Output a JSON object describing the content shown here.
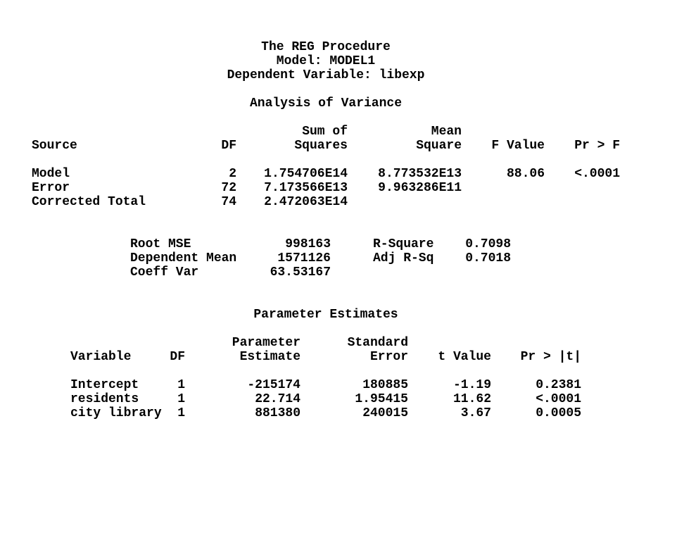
{
  "report": {
    "titles": {
      "procedure": "The REG Procedure",
      "model": "Model: MODEL1",
      "dependent": "Dependent Variable: libexp"
    },
    "anova": {
      "title": "Analysis of Variance",
      "header_top": {
        "sum_of": "Sum of",
        "mean": "Mean"
      },
      "header": {
        "source": "Source",
        "df": "DF",
        "squares": "Squares",
        "square": "Square",
        "f_value": "F Value",
        "pr_f": "Pr > F"
      },
      "rows": [
        {
          "source": "Model",
          "df": "2",
          "sum_of_squares": "1.754706E14",
          "mean_square": "8.773532E13",
          "f_value": "88.06",
          "pr_f": "<.0001"
        },
        {
          "source": "Error",
          "df": "72",
          "sum_of_squares": "7.173566E13",
          "mean_square": "9.963286E11",
          "f_value": "",
          "pr_f": ""
        },
        {
          "source": "Corrected Total",
          "df": "74",
          "sum_of_squares": "2.472063E14",
          "mean_square": "",
          "f_value": "",
          "pr_f": ""
        }
      ]
    },
    "fit_statistics": {
      "rows": [
        {
          "label": "Root MSE",
          "value": "998163",
          "label2": "R-Square",
          "value2": "0.7098"
        },
        {
          "label": "Dependent Mean",
          "value": "1571126",
          "label2": "Adj R-Sq",
          "value2": "0.7018"
        },
        {
          "label": "Coeff Var",
          "value": "63.53167",
          "label2": "",
          "value2": ""
        }
      ]
    },
    "parameter_estimates": {
      "title": "Parameter Estimates",
      "header_top": {
        "parameter": "Parameter",
        "standard": "Standard"
      },
      "header": {
        "variable": "Variable",
        "df": "DF",
        "estimate": "Estimate",
        "error": "Error",
        "t_value": "t Value",
        "pr_t": "Pr > |t|"
      },
      "rows": [
        {
          "variable": "Intercept",
          "df": "1",
          "estimate": "-215174",
          "error": "180885",
          "t_value": "-1.19",
          "pr_t": "0.2381"
        },
        {
          "variable": "residents",
          "df": "1",
          "estimate": "22.714",
          "error": "1.95415",
          "t_value": "11.62",
          "pr_t": "<.0001"
        },
        {
          "variable": "city library",
          "df": "1",
          "estimate": "881380",
          "error": "240015",
          "t_value": "3.67",
          "pr_t": "0.0005"
        }
      ]
    }
  },
  "colors": {
    "text": "#000000",
    "background": "#ffffff"
  }
}
